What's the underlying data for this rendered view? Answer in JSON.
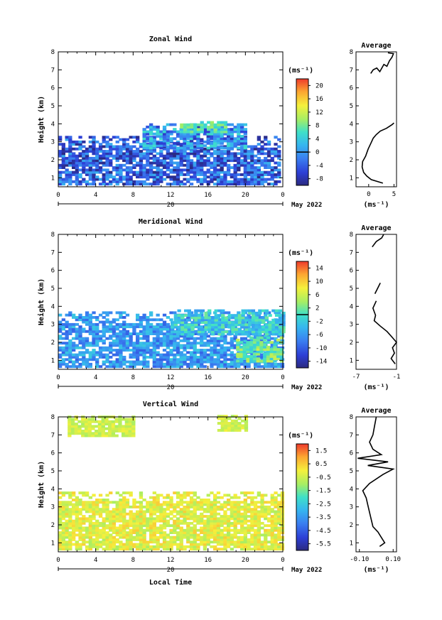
{
  "figure": {
    "xlabel": "Local Time",
    "date_label": "May 2022",
    "colorbar_unit": "(ms⁻¹)",
    "avg_xlabel": "(ms⁻¹)"
  },
  "chart_data": [
    {
      "type": "heatmap",
      "title": "Zonal Wind",
      "ylabel": "Height (km)",
      "x_ticks": [
        "0",
        "4",
        "8",
        "12",
        "16",
        "20",
        "0"
      ],
      "day_label": "20",
      "y_ticks": [
        "1",
        "2",
        "3",
        "4",
        "5",
        "6",
        "7",
        "8"
      ],
      "xlim": [
        0,
        24
      ],
      "ylim": [
        0.5,
        8.0
      ],
      "colorbar": {
        "label": "(ms⁻¹)",
        "range": [
          -10,
          22
        ],
        "ticks": [
          "20",
          "16",
          "12",
          "8",
          "4",
          "0",
          "-4",
          "-8"
        ],
        "zero_line": 0
      },
      "data_regions": [
        {
          "x": [
            0,
            23.5
          ],
          "y": [
            0.6,
            3.3
          ],
          "range": [
            -10,
            2
          ]
        },
        {
          "x": [
            9,
            20
          ],
          "y": [
            2.6,
            4.0
          ],
          "range": [
            -8,
            6
          ]
        },
        {
          "x": [
            13,
            18
          ],
          "y": [
            3.5,
            4.1
          ],
          "range": [
            4,
            10
          ]
        }
      ],
      "average": {
        "title": "Average",
        "x_ticks": [
          "0",
          "5"
        ],
        "xlim": [
          -2.5,
          5.5
        ],
        "profile": [
          [
            2.8,
            0.7
          ],
          [
            0.5,
            0.9
          ],
          [
            -0.4,
            1.1
          ],
          [
            -1.0,
            1.3
          ],
          [
            -1.3,
            1.6
          ],
          [
            -1.2,
            1.9
          ],
          [
            -0.6,
            2.2
          ],
          [
            -0.1,
            2.6
          ],
          [
            0.4,
            2.9
          ],
          [
            0.9,
            3.2
          ],
          [
            1.5,
            3.4
          ],
          [
            2.3,
            3.6
          ],
          [
            3.5,
            3.75
          ],
          [
            4.6,
            3.95
          ],
          [
            5.0,
            4.05
          ]
        ],
        "profile_upper": [
          [
            0.4,
            6.8
          ],
          [
            0.9,
            7.0
          ],
          [
            1.6,
            7.1
          ],
          [
            2.2,
            6.9
          ],
          [
            3.0,
            7.3
          ],
          [
            3.6,
            7.2
          ],
          [
            4.1,
            7.5
          ],
          [
            4.6,
            7.7
          ],
          [
            4.9,
            7.9
          ],
          [
            3.8,
            7.95
          ]
        ]
      }
    },
    {
      "type": "heatmap",
      "title": "Meridional Wind",
      "ylabel": "Height (km)",
      "x_ticks": [
        "0",
        "4",
        "8",
        "12",
        "16",
        "20",
        "0"
      ],
      "day_label": "20",
      "y_ticks": [
        "1",
        "2",
        "3",
        "4",
        "5",
        "6",
        "7",
        "8"
      ],
      "xlim": [
        0,
        24
      ],
      "ylim": [
        0.5,
        8.0
      ],
      "colorbar": {
        "label": "(ms⁻¹)",
        "range": [
          -16,
          16
        ],
        "ticks": [
          "14",
          "10",
          "6",
          "2",
          "-2",
          "-6",
          "-10",
          "-14"
        ],
        "zero_line": 0
      },
      "data_regions": [
        {
          "x": [
            0,
            24
          ],
          "y": [
            0.6,
            3.6
          ],
          "range": [
            -10,
            -2
          ]
        },
        {
          "x": [
            12,
            24
          ],
          "y": [
            2.4,
            3.8
          ],
          "range": [
            -6,
            2
          ]
        },
        {
          "x": [
            19,
            24
          ],
          "y": [
            0.9,
            2.3
          ],
          "range": [
            -2,
            6
          ]
        }
      ],
      "average": {
        "title": "Average",
        "x_ticks": [
          "-7",
          "-1"
        ],
        "xlim": [
          -7,
          -1
        ],
        "profile": [
          [
            -1.2,
            0.8
          ],
          [
            -1.8,
            1.1
          ],
          [
            -1.3,
            1.4
          ],
          [
            -1.6,
            1.7
          ],
          [
            -1.0,
            2.0
          ],
          [
            -1.7,
            2.3
          ],
          [
            -2.4,
            2.6
          ],
          [
            -3.4,
            2.9
          ],
          [
            -4.3,
            3.2
          ],
          [
            -4.1,
            3.5
          ],
          [
            -4.5,
            3.9
          ],
          [
            -4.0,
            4.3
          ]
        ],
        "profile_upper": [
          [
            -4.2,
            4.7
          ],
          [
            -3.4,
            5.3
          ]
        ],
        "profile_top": [
          [
            -4.6,
            7.3
          ],
          [
            -4.0,
            7.6
          ],
          [
            -3.2,
            7.8
          ],
          [
            -2.9,
            8.0
          ]
        ]
      }
    },
    {
      "type": "heatmap",
      "title": "Vertical Wind",
      "ylabel": "Height (km)",
      "x_ticks": [
        "0",
        "4",
        "8",
        "12",
        "16",
        "20",
        "0"
      ],
      "day_label": "20",
      "y_ticks": [
        "1",
        "2",
        "3",
        "4",
        "5",
        "6",
        "7",
        "8"
      ],
      "xlim": [
        0,
        24
      ],
      "ylim": [
        0.5,
        8.0
      ],
      "colorbar": {
        "label": "(ms⁻¹)",
        "range": [
          -6.0,
          2.0
        ],
        "ticks": [
          "1.5",
          "0.5",
          "-0.5",
          "-1.5",
          "-2.5",
          "-3.5",
          "-4.5",
          "-5.5"
        ],
        "zero_line": null
      },
      "data_regions": [
        {
          "x": [
            0,
            24
          ],
          "y": [
            0.6,
            3.8
          ],
          "range": [
            -1.0,
            0.5
          ]
        },
        {
          "x": [
            1,
            8
          ],
          "y": [
            6.9,
            8.0
          ],
          "range": [
            -1.0,
            0.0
          ]
        },
        {
          "x": [
            17,
            20
          ],
          "y": [
            7.2,
            8.0
          ],
          "range": [
            -1.0,
            0.0
          ]
        }
      ],
      "average": {
        "title": "Average",
        "x_ticks": [
          "-0.10",
          "0.10"
        ],
        "xlim": [
          -0.12,
          0.12
        ],
        "profile": [
          [
            0.02,
            0.8
          ],
          [
            0.05,
            1.0
          ],
          [
            0.03,
            1.3
          ],
          [
            0.01,
            1.6
          ],
          [
            -0.02,
            1.9
          ],
          [
            -0.03,
            2.3
          ],
          [
            -0.04,
            2.7
          ],
          [
            -0.05,
            3.1
          ],
          [
            -0.06,
            3.5
          ],
          [
            -0.08,
            3.9
          ],
          [
            -0.04,
            4.3
          ],
          [
            0.04,
            4.8
          ],
          [
            0.1,
            5.1
          ],
          [
            -0.05,
            5.3
          ],
          [
            0.07,
            5.5
          ],
          [
            -0.11,
            5.7
          ],
          [
            0.03,
            5.9
          ],
          [
            -0.02,
            6.2
          ],
          [
            -0.04,
            6.6
          ],
          [
            -0.02,
            7.0
          ],
          [
            -0.01,
            7.5
          ],
          [
            0.0,
            8.0
          ]
        ]
      }
    }
  ]
}
